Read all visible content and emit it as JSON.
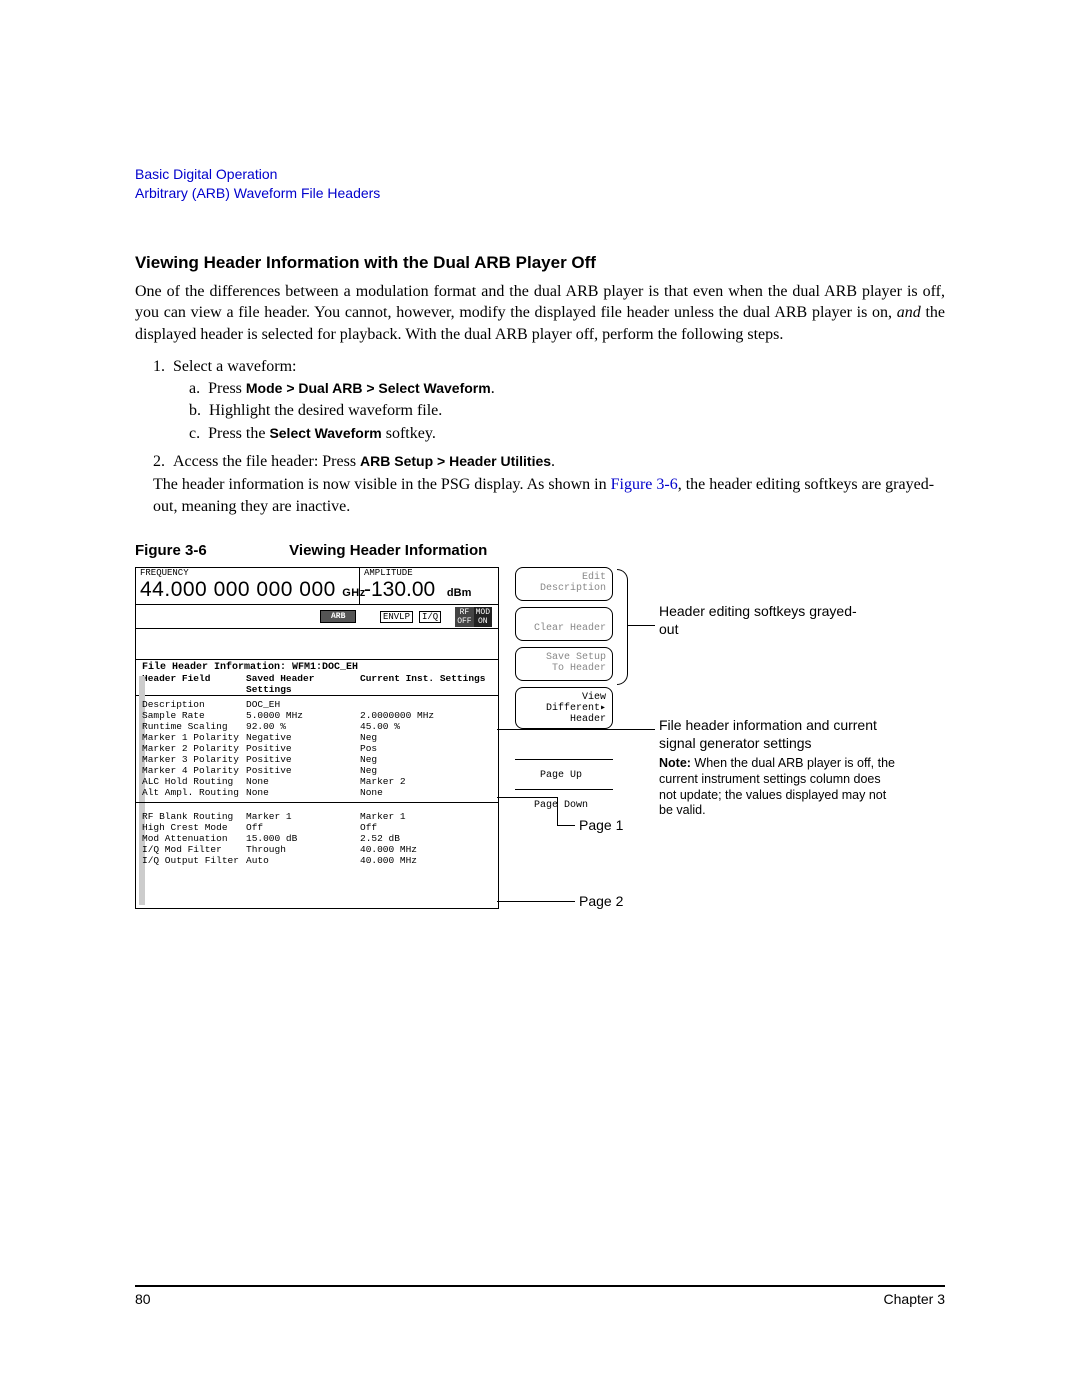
{
  "header": {
    "line1": "Basic Digital Operation",
    "line2": "Arbitrary (ARB) Waveform File Headers"
  },
  "section": {
    "title": "Viewing Header Information with the Dual ARB Player Off",
    "p1": "One of the differences between a modulation format and the dual ARB player is that even when the dual ARB player is off, you can view a file header. You cannot, however, modify the displayed file header unless the dual ARB player is on, ",
    "p1_em": "and",
    "p1b": " the displayed header is selected for playback. With the dual ARB player off, perform the following steps.",
    "step1": "Select a waveform:",
    "step1a_pre": "Press ",
    "step1a_bold": "Mode > Dual ARB > Select Waveform",
    "step1a_post": ".",
    "step1b": "Highlight the desired waveform file.",
    "step1c_pre": "Press the ",
    "step1c_bold": "Select Waveform",
    "step1c_post": " softkey.",
    "step2_pre": "Access the file header: Press ",
    "step2_bold": "ARB Setup > Header Utilities",
    "step2_post": ".",
    "step2_p2a": "The header information is now visible in the PSG display. As shown in ",
    "step2_link": "Figure 3-6",
    "step2_p2b": ", the header editing softkeys are grayed-out, meaning they are inactive."
  },
  "figure": {
    "label": "Figure 3-6",
    "title": "Viewing Header Information"
  },
  "screen": {
    "freq_label": "FREQUENCY",
    "freq_val": "44.000 000 000 000",
    "freq_unit": "GHz",
    "amp_label": "AMPLITUDE",
    "amp_val": "-130.00",
    "amp_unit": "dBm",
    "arb": "ARB",
    "envlp": "ENVLP",
    "iq": "I/Q",
    "rf": "RF",
    "rf_state": "OFF",
    "mod": "MOD",
    "mod_state": "ON",
    "file_hdr": "File Header Information: WFM1:DOC_EH",
    "col1": "Header Field",
    "col2": "Saved Header Settings",
    "col3": "Current Inst. Settings",
    "page1": [
      [
        "Description",
        "DOC_EH",
        ""
      ],
      [
        "",
        "",
        ""
      ],
      [
        "Sample Rate",
        "5.0000 MHz",
        "2.0000000 MHz"
      ],
      [
        "Runtime Scaling",
        "92.00 %",
        "45.00 %"
      ],
      [
        "Marker 1 Polarity",
        "Negative",
        "Neg"
      ],
      [
        "Marker 2 Polarity",
        "Positive",
        "Pos"
      ],
      [
        "Marker 3 Polarity",
        "Positive",
        "Neg"
      ],
      [
        "Marker 4 Polarity",
        "Positive",
        "Neg"
      ],
      [
        "ALC Hold Routing",
        "None",
        "Marker 2"
      ],
      [
        "Alt Ampl. Routing",
        "None",
        "None"
      ]
    ],
    "page2": [
      [
        "RF Blank Routing",
        "Marker 1",
        "Marker 1"
      ],
      [
        "High Crest Mode",
        "Off",
        "Off"
      ],
      [
        "Mod Attenuation",
        "15.000 dB",
        "2.52 dB"
      ],
      [
        "I/Q Mod Filter",
        "Through",
        "40.000 MHz"
      ],
      [
        "I/Q Output Filter",
        "Auto",
        "40.000 MHz"
      ]
    ]
  },
  "softkeys": {
    "k1a": "Edit",
    "k1b": "Description",
    "k2": "Clear Header",
    "k3a": "Save Setup",
    "k3b": "To Header",
    "k4a": "View",
    "k4b": "Different",
    "k4c": "Header",
    "k5": "Page Up",
    "k6": "Page Down"
  },
  "annotations": {
    "a1": "Header editing softkeys grayed-out",
    "a2": "File header information and current signal generator settings",
    "a3_bold": "Note:",
    "a3": " When the dual ARB player is off, the current instrument settings column does not update; the values displayed may not be valid.",
    "p1": "Page 1",
    "p2": "Page 2"
  },
  "footer": {
    "page": "80",
    "chapter": "Chapter 3"
  }
}
